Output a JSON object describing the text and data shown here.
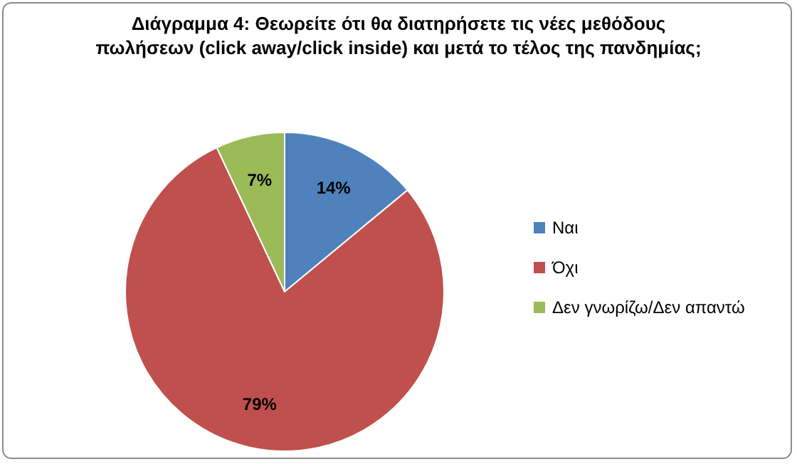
{
  "chart_data": {
    "type": "pie",
    "title": "Διάγραμμα 4: Θεωρείτε ότι θα διατηρήσετε τις νέες μεθόδους πωλήσεων (click away/click inside) και μετά το τέλος της πανδημίας;",
    "categories": [
      "Ναι",
      "Όχι",
      "Δεν γνωρίζω/Δεν απαντώ"
    ],
    "values": [
      14,
      79,
      7
    ],
    "colors": [
      "#4f81bd",
      "#c0504d",
      "#9bbb59"
    ],
    "value_labels": [
      "14%",
      "79%",
      "7%"
    ],
    "legend": "right"
  }
}
